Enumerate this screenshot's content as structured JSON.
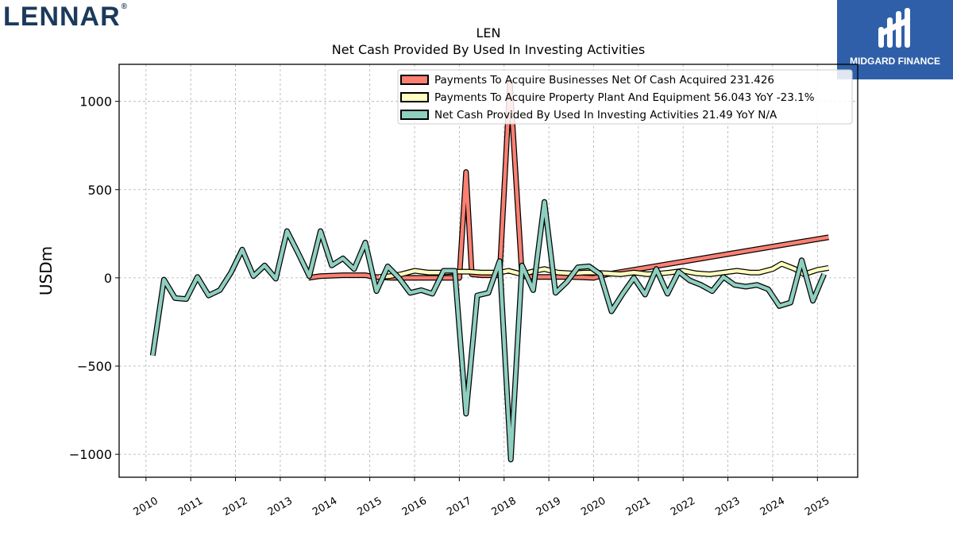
{
  "brand": {
    "left_logo": "LENNAR",
    "left_logo_mark": "®",
    "right_logo": "MIDGARD FINANCE"
  },
  "colors": {
    "acquire_businesses": "#fa8072",
    "acquire_ppe": "#ffffc0",
    "net_cash": "#8ecfc0",
    "brand_blue": "#2f5fa8",
    "lennar_navy": "#1b3a5c"
  },
  "chart_data": {
    "type": "line",
    "title": "LEN",
    "subtitle": "Net Cash Provided By Used In Investing Activities",
    "xlabel": "",
    "ylabel": "USDm",
    "ylim": [
      -1130,
      1210
    ],
    "xlim": [
      2009.4,
      2025.9
    ],
    "yticks": [
      1000,
      500,
      0,
      -500,
      -1000
    ],
    "ytick_labels": [
      "1000",
      "500",
      "0",
      "−500",
      "−1000"
    ],
    "xticks": [
      2010,
      2011,
      2012,
      2013,
      2014,
      2015,
      2016,
      2017,
      2018,
      2019,
      2020,
      2021,
      2022,
      2023,
      2024,
      2025
    ],
    "xtick_labels": [
      "2010",
      "2011",
      "2012",
      "2013",
      "2014",
      "2015",
      "2016",
      "2017",
      "2018",
      "2019",
      "2020",
      "2021",
      "2022",
      "2023",
      "2024",
      "2025"
    ],
    "grid": true,
    "legend_position": "top-right",
    "series": [
      {
        "name": "Payments To Acquire Businesses Net Of Cash Acquired  231.426",
        "color_key": "acquire_businesses",
        "x": [
          2013.63,
          2013.9,
          2014.4,
          2014.9,
          2015.1,
          2015.5,
          2016.0,
          2016.5,
          2016.9,
          2017.0,
          2017.15,
          2017.28,
          2017.5,
          2017.9,
          2018.13,
          2018.4,
          2018.7,
          2019.0,
          2019.5,
          2020.0,
          2020.3,
          2025.25
        ],
        "y": [
          0,
          10,
          15,
          15,
          5,
          0,
          0,
          0,
          0,
          0,
          600,
          20,
          15,
          15,
          1110,
          10,
          5,
          5,
          5,
          0,
          20,
          230
        ]
      },
      {
        "name": "Payments To Acquire Property Plant And Equipment  56.043 YoY -23.1%",
        "color_key": "acquire_ppe",
        "x": [
          2015.2,
          2015.45,
          2015.7,
          2016.0,
          2016.3,
          2016.6,
          2016.9,
          2017.2,
          2017.5,
          2017.9,
          2018.1,
          2018.4,
          2018.7,
          2018.9,
          2019.2,
          2019.5,
          2019.8,
          2020.0,
          2020.3,
          2020.6,
          2020.9,
          2021.2,
          2021.5,
          2021.7,
          2022.0,
          2022.3,
          2022.6,
          2022.9,
          2023.2,
          2023.5,
          2023.7,
          2024.0,
          2024.2,
          2024.5,
          2024.7,
          2025.0,
          2025.25
        ],
        "y": [
          5,
          10,
          20,
          40,
          30,
          30,
          35,
          35,
          30,
          30,
          40,
          20,
          40,
          50,
          30,
          25,
          30,
          30,
          25,
          20,
          30,
          20,
          25,
          30,
          40,
          25,
          20,
          30,
          40,
          30,
          30,
          50,
          80,
          50,
          20,
          45,
          56
        ]
      },
      {
        "name": "Net Cash Provided By Used In Investing Activities  21.49 YoY N/A",
        "color_key": "net_cash",
        "x": [
          2010.15,
          2010.4,
          2010.65,
          2010.9,
          2011.15,
          2011.4,
          2011.65,
          2011.9,
          2012.15,
          2012.4,
          2012.65,
          2012.9,
          2013.15,
          2013.4,
          2013.65,
          2013.9,
          2014.15,
          2014.4,
          2014.65,
          2014.9,
          2015.15,
          2015.4,
          2015.65,
          2015.9,
          2016.15,
          2016.4,
          2016.65,
          2016.9,
          2017.15,
          2017.4,
          2017.65,
          2017.9,
          2018.15,
          2018.4,
          2018.65,
          2018.9,
          2019.15,
          2019.4,
          2019.65,
          2019.9,
          2020.15,
          2020.4,
          2020.65,
          2020.9,
          2021.15,
          2021.4,
          2021.65,
          2021.9,
          2022.15,
          2022.4,
          2022.65,
          2022.9,
          2023.15,
          2023.4,
          2023.65,
          2023.9,
          2024.15,
          2024.4,
          2024.65,
          2024.9,
          2025.15
        ],
        "y": [
          -440,
          -10,
          -115,
          -120,
          5,
          -100,
          -70,
          30,
          160,
          10,
          70,
          -5,
          265,
          140,
          10,
          265,
          70,
          110,
          50,
          200,
          -75,
          65,
          0,
          -85,
          -70,
          -90,
          40,
          40,
          -770,
          -100,
          -85,
          95,
          -1030,
          70,
          -70,
          430,
          -85,
          -25,
          60,
          65,
          20,
          -190,
          -90,
          0,
          -95,
          50,
          -90,
          35,
          -15,
          -40,
          -75,
          5,
          -40,
          -50,
          -40,
          -65,
          -160,
          -140,
          100,
          -130,
          21
        ]
      }
    ]
  }
}
